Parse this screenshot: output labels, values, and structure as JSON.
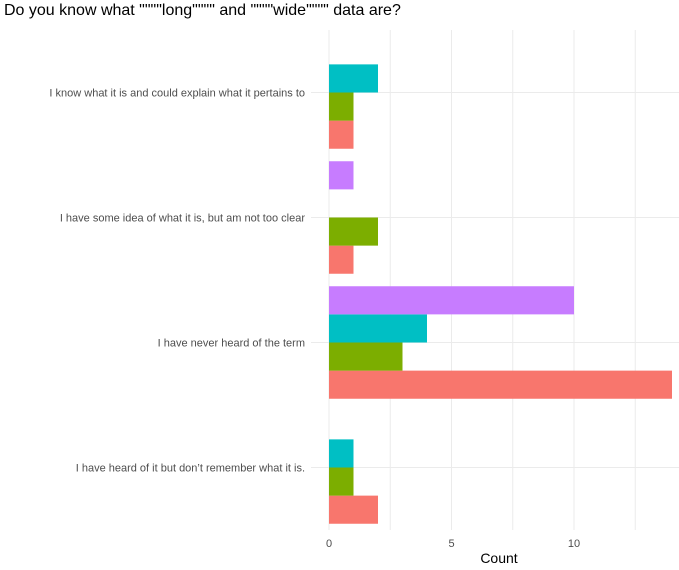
{
  "chart_data": {
    "type": "bar",
    "orientation": "horizontal",
    "title": "Do you know what \"\"\"\"long\"\"\"\" and \"\"\"\"wide\"\"\"\" data are?",
    "xlabel": "Count",
    "ylabel": "",
    "xlim": [
      0,
      14
    ],
    "xticks": [
      0,
      5,
      10
    ],
    "grid": true,
    "legend": "none",
    "categories": [
      "I know what it is and could explain what it pertains to",
      "I have some idea of what it is, but am not too clear",
      "I have never heard of the term",
      "I have heard of it but don’t remember what it is."
    ],
    "series": [
      {
        "color": "#F8766D",
        "values": [
          1,
          1,
          14,
          2
        ]
      },
      {
        "color": "#7CAE00",
        "values": [
          1,
          2,
          3,
          1
        ]
      },
      {
        "color": "#00BFC4",
        "values": [
          2,
          null,
          4,
          1
        ]
      },
      {
        "color": "#C77CFF",
        "values": [
          null,
          1,
          10,
          null
        ]
      }
    ]
  }
}
